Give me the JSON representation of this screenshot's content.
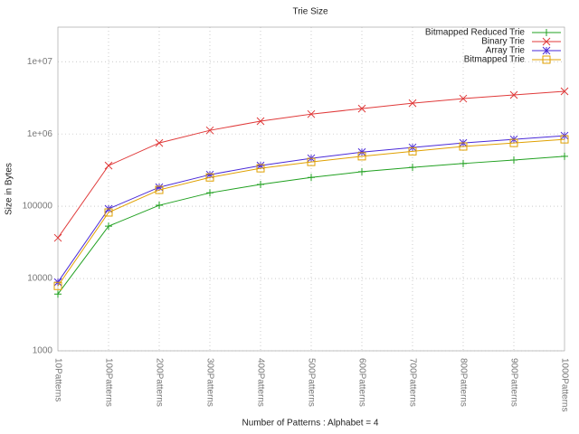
{
  "chart_data": {
    "type": "line",
    "title": "Trie Size",
    "xlabel": "Number of Patterns : Alphabet = 4",
    "ylabel": "Size in Bytes",
    "categories": [
      "10Patterns",
      "100Patterns",
      "200Patterns",
      "300Patterns",
      "400Patterns",
      "500Patterns",
      "600Patterns",
      "700Patterns",
      "800Patterns",
      "900Patterns",
      "1000Patterns"
    ],
    "log_y": true,
    "grid": true,
    "legend": "top-right",
    "ylim": [
      1000,
      30000000
    ],
    "yticks": [
      1000,
      10000,
      100000,
      {
        "value": 1000000,
        "label": "1e+06"
      },
      {
        "value": 10000000,
        "label": "1e+07"
      }
    ],
    "series": [
      {
        "name": "Bitmapped Reduced Trie",
        "color": "#20a020",
        "marker": "plus",
        "values": [
          6100,
          53000,
          103000,
          153000,
          200000,
          250000,
          300000,
          345000,
          390000,
          435000,
          490000
        ]
      },
      {
        "name": "Binary Trie",
        "color": "#e03a3a",
        "marker": "cross",
        "values": [
          36500,
          365000,
          750000,
          1120000,
          1500000,
          1880000,
          2240000,
          2660000,
          3080000,
          3460000,
          3880000
        ]
      },
      {
        "name": "Array Trie",
        "color": "#4a2ad8",
        "marker": "star",
        "values": [
          8900,
          92000,
          183000,
          273000,
          365000,
          460000,
          560000,
          650000,
          750000,
          840000,
          945000
        ]
      },
      {
        "name": "Bitmapped Trie",
        "color": "#e0a000",
        "marker": "square",
        "values": [
          7900,
          82000,
          168000,
          250000,
          335000,
          410000,
          490000,
          575000,
          670000,
          750000,
          840000
        ]
      }
    ]
  }
}
